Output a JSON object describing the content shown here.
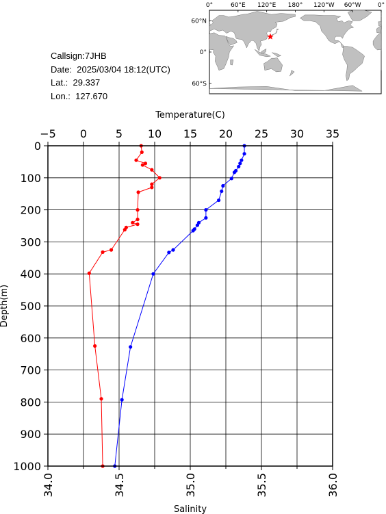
{
  "info": {
    "callsign": "Callsign:7JHB",
    "date": "Date:  2025/03/04 18:12(UTC)",
    "lat": "Lat.:  29.337",
    "lon": "Lon.:  127.670"
  },
  "map": {
    "lon_labels": [
      "0°",
      "60°E",
      "120°E",
      "180°",
      "120°W",
      "60°W",
      "0°"
    ],
    "lat_labels": [
      "60°N",
      "0°",
      "60°S"
    ],
    "station": {
      "lat": 29.337,
      "lon": 127.67
    },
    "colors": {
      "land": "#c0c0c0",
      "ocean": "#ffffff",
      "marker": "#ff0000"
    }
  },
  "chart_data": {
    "type": "line",
    "ylabel": "Depth(m)",
    "top_axis_label": "Temperature(C)",
    "bottom_axis_label": "Salinity",
    "ylim": [
      1000,
      0
    ],
    "yticks": [
      "0",
      "100",
      "200",
      "300",
      "400",
      "500",
      "600",
      "700",
      "800",
      "900",
      "1000"
    ],
    "temperature_range": [
      -5,
      35
    ],
    "temperature_ticks": [
      "-5",
      "0",
      "5",
      "10",
      "15",
      "20",
      "25",
      "30",
      "35"
    ],
    "salinity_range": [
      34.0,
      36.0
    ],
    "salinity_ticks": [
      "34.0",
      "34.5",
      "35.0",
      "35.5",
      "36.0"
    ],
    "grid": true,
    "series": [
      {
        "axis": "temperature",
        "color": "#ff0000",
        "points": [
          [
            8.1,
            0
          ],
          [
            8.2,
            20
          ],
          [
            7.4,
            45
          ],
          [
            8.7,
            55
          ],
          [
            8.3,
            60
          ],
          [
            9.6,
            75
          ],
          [
            10.7,
            100
          ],
          [
            9.6,
            120
          ],
          [
            9.6,
            130
          ],
          [
            7.7,
            145
          ],
          [
            7.6,
            200
          ],
          [
            7.6,
            230
          ],
          [
            6.9,
            240
          ],
          [
            7.6,
            245
          ],
          [
            6.0,
            255
          ],
          [
            5.8,
            262
          ],
          [
            3.9,
            325
          ],
          [
            2.7,
            332
          ],
          [
            0.8,
            398
          ],
          [
            1.6,
            625
          ],
          [
            2.5,
            790
          ],
          [
            2.7,
            1000
          ]
        ]
      },
      {
        "axis": "salinity",
        "color": "#0000ff",
        "points": [
          [
            35.38,
            0
          ],
          [
            35.38,
            25
          ],
          [
            35.36,
            45
          ],
          [
            35.35,
            55
          ],
          [
            35.34,
            65
          ],
          [
            35.32,
            78
          ],
          [
            35.31,
            83
          ],
          [
            35.29,
            102
          ],
          [
            35.23,
            125
          ],
          [
            35.22,
            142
          ],
          [
            35.2,
            170
          ],
          [
            35.11,
            200
          ],
          [
            35.11,
            225
          ],
          [
            35.06,
            240
          ],
          [
            35.05,
            248
          ],
          [
            35.03,
            260
          ],
          [
            35.02,
            265
          ],
          [
            34.88,
            325
          ],
          [
            34.85,
            333
          ],
          [
            34.74,
            400
          ],
          [
            34.58,
            628
          ],
          [
            34.52,
            793
          ],
          [
            34.47,
            1000
          ]
        ]
      }
    ]
  }
}
